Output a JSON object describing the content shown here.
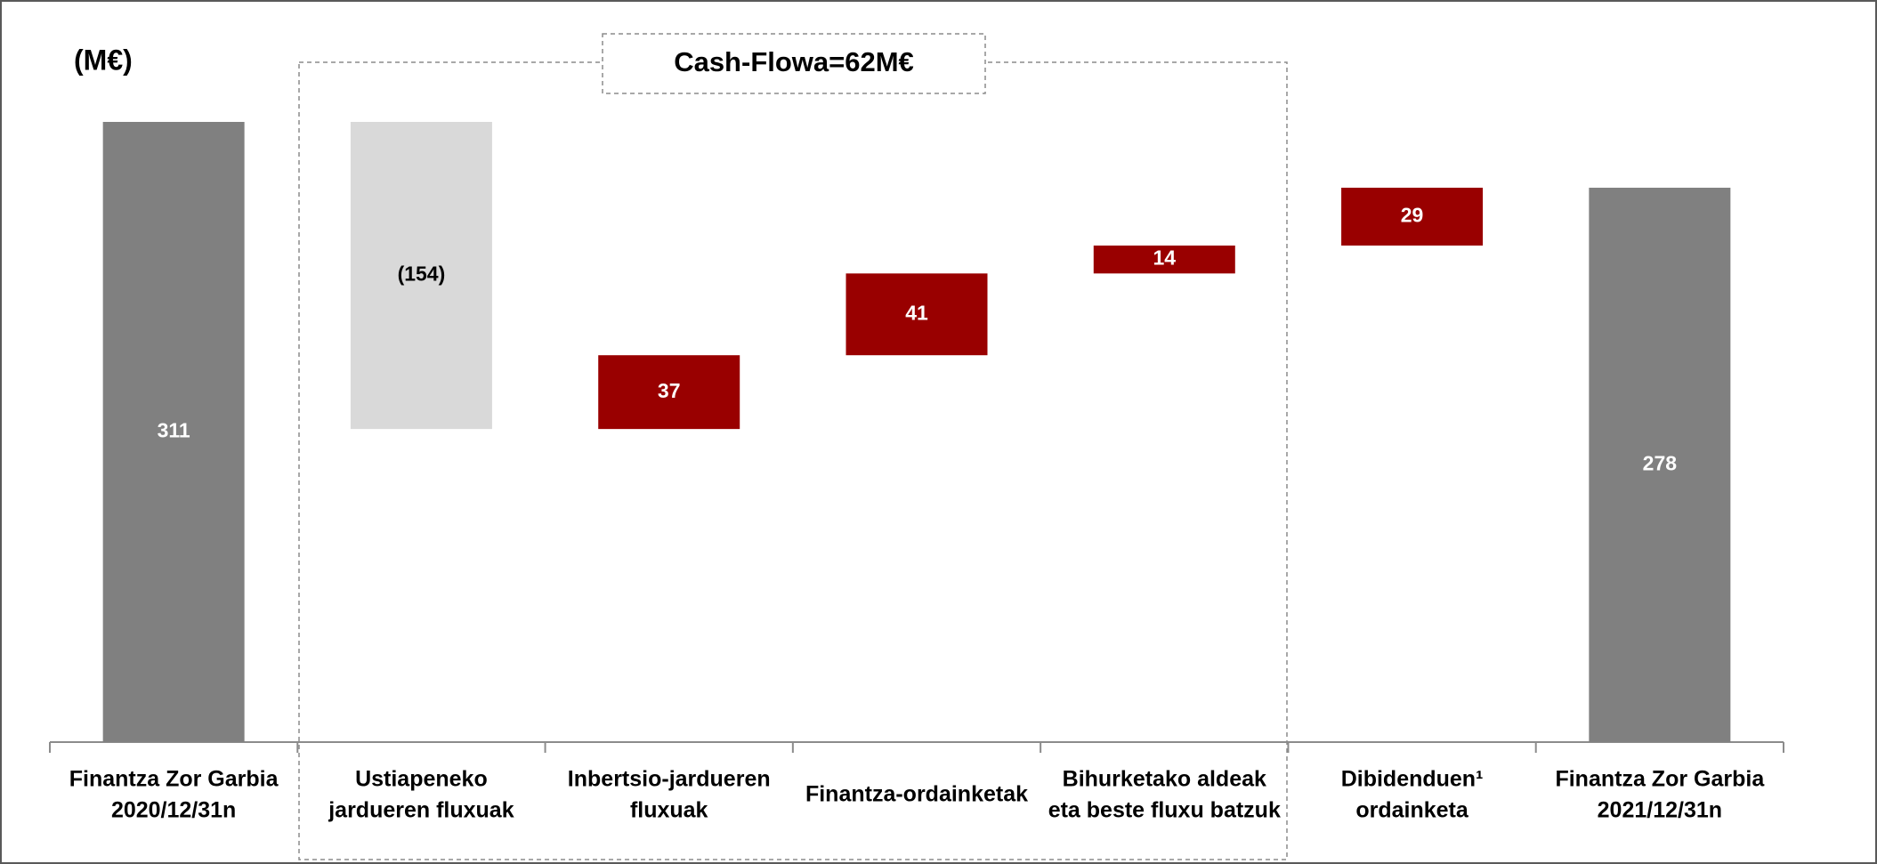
{
  "chart_data": {
    "type": "waterfall",
    "unit_label": "(M€)",
    "annotation": "Cash-Flowa=62M€",
    "categories": [
      "Finantza Zor Garbia\n2020/12/31n",
      "Ustiapeneko\njardueren fluxuak",
      "Inbertsio-jardueren\nfluxuak",
      "Finantza-ordainketak",
      "Bihurketako aldeak\neta beste fluxu batzuk",
      "Dibidenduen¹\nordainketa",
      "Finantza Zor Garbia\n2021/12/31n"
    ],
    "values": [
      311,
      -154,
      37,
      41,
      14,
      29,
      278
    ],
    "value_labels": [
      "311",
      "(154)",
      "37",
      "41",
      "14",
      "29",
      "278"
    ],
    "measure": [
      "total",
      "relative",
      "relative",
      "relative",
      "relative",
      "relative",
      "total"
    ],
    "colors": [
      "#808080",
      "#d9d9d9",
      "#990000",
      "#990000",
      "#990000",
      "#990000",
      "#808080"
    ],
    "label_colors": [
      "#ffffff",
      "#000000",
      "#ffffff",
      "#ffffff",
      "#ffffff",
      "#ffffff",
      "#ffffff"
    ]
  }
}
